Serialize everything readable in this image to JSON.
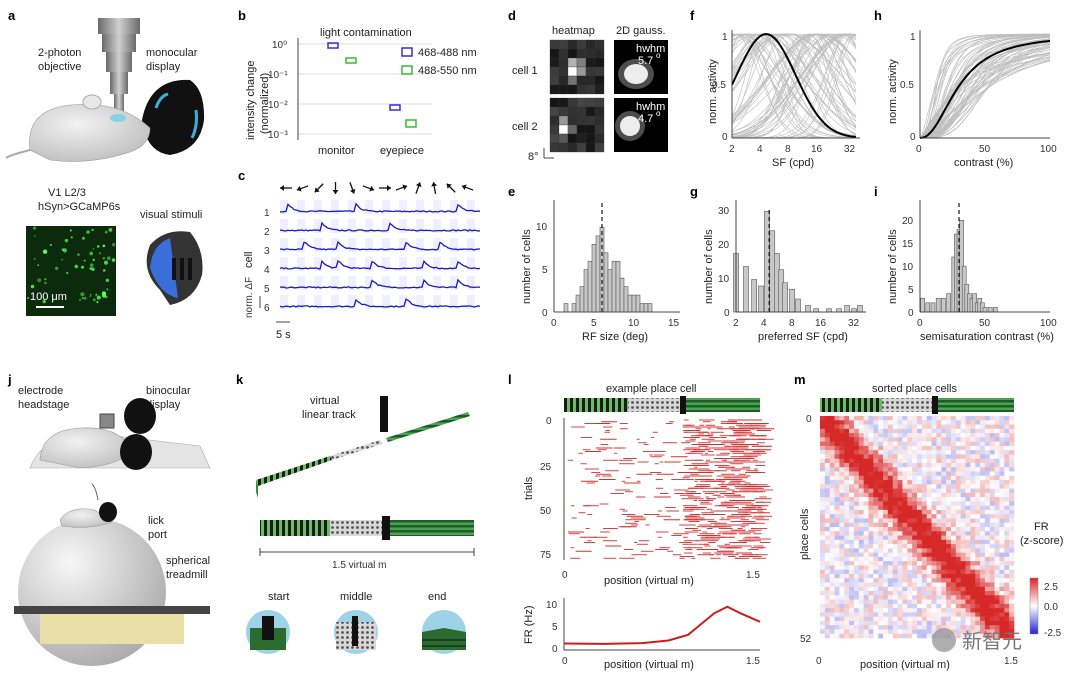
{
  "panels": {
    "a": {
      "label": "a",
      "objective": [
        "2-photon",
        "objective"
      ],
      "display": [
        "monocular",
        "display"
      ],
      "region": [
        "V1 L2/3",
        "hSyn>GCaMP6s"
      ],
      "scalebar": "100 μm",
      "stimuli": "visual stimuli"
    },
    "b": {
      "label": "b",
      "title": "light contamination",
      "ylabel": [
        "intensity change",
        "(normalized)"
      ],
      "yticks": [
        "10⁰",
        "10⁻¹",
        "10⁻²",
        "10⁻³"
      ],
      "xticks": [
        "monitor",
        "eyepiece"
      ],
      "legend": [
        {
          "name": "468-488 nm",
          "color": "#3030d0"
        },
        {
          "name": "488-550 nm",
          "color": "#30c030"
        }
      ]
    },
    "c": {
      "label": "c",
      "cells": [
        "1",
        "2",
        "3",
        "4",
        "5",
        "6"
      ],
      "ylabel": "cell",
      "scale_y": "norm. ΔF",
      "scale_x": "5 s"
    },
    "d": {
      "label": "d",
      "heatmap": "heatmap",
      "gauss": "2D gauss.",
      "cells": [
        "cell 1",
        "cell 2"
      ],
      "hwhm": "hwhm",
      "vals": [
        "5.7",
        "4.7"
      ],
      "deg": "o",
      "scale": "8°"
    },
    "e": {
      "label": "e",
      "xlabel": "RF size (deg)",
      "ylabel": "number of cells",
      "xticks": [
        "0",
        "5",
        "10",
        "15"
      ],
      "yticks": [
        "0",
        "5",
        "10"
      ]
    },
    "f": {
      "label": "f",
      "xlabel": "SF (cpd)",
      "ylabel": "norm. activity",
      "xticks": [
        "2",
        "4",
        "8",
        "16",
        "32"
      ],
      "yticks": [
        "0",
        "0.5",
        "1"
      ]
    },
    "g": {
      "label": "g",
      "xlabel": "preferred SF (cpd)",
      "ylabel": "number of cells",
      "xticks": [
        "2",
        "4",
        "8",
        "16",
        "32"
      ],
      "yticks": [
        "0",
        "10",
        "20",
        "30"
      ]
    },
    "h": {
      "label": "h",
      "xlabel": "contrast (%)",
      "ylabel": "norm. activity",
      "xticks": [
        "0",
        "50",
        "100"
      ],
      "yticks": [
        "0",
        "0.5",
        "1"
      ]
    },
    "i": {
      "label": "i",
      "xlabel": "semisaturation contrast (%)",
      "ylabel": "number of cells",
      "xticks": [
        "0",
        "50",
        "100"
      ],
      "yticks": [
        "0",
        "5",
        "10",
        "15",
        "20"
      ]
    },
    "j": {
      "label": "j",
      "headstage": [
        "electrode",
        "headstage"
      ],
      "display": [
        "binocular",
        "display"
      ],
      "lick": [
        "lick",
        "port"
      ],
      "treadmill": [
        "spherical",
        "treadmill"
      ]
    },
    "k": {
      "label": "k",
      "title": [
        "virtual",
        "linear track"
      ],
      "length": "1.5 virtual m",
      "views": [
        "start",
        "middle",
        "end"
      ]
    },
    "l": {
      "label": "l",
      "title": "example place cell",
      "ylabel": "trials",
      "xlabel": "position (virtual m)",
      "yticks": [
        "0",
        "25",
        "50",
        "75"
      ],
      "xticks": [
        "0",
        "1.5"
      ],
      "fr_label": "FR (Hz)",
      "fr_yticks": [
        "0",
        "5",
        "10"
      ],
      "fr_xticks": [
        "0",
        "1.5"
      ]
    },
    "m": {
      "label": "m",
      "title": "sorted place cells",
      "ylabel": "place cells",
      "xlabel": "position (virtual m)",
      "yticks": [
        "0",
        "52"
      ],
      "xticks": [
        "0",
        "1.5"
      ],
      "cbar_title": [
        "FR",
        "(z-score)"
      ],
      "cbar_ticks": [
        "2.5",
        "0.0",
        "-2.5"
      ]
    }
  },
  "watermark": "新智元",
  "chart_data": [
    {
      "type": "bar",
      "id": "e",
      "x": [
        1.5,
        2.5,
        3,
        3.5,
        4,
        4.5,
        5,
        5.5,
        6,
        6.5,
        7,
        7.5,
        8,
        8.5,
        9,
        9.5,
        10,
        10.5,
        11,
        11.5,
        12
      ],
      "values": [
        1,
        1,
        2,
        3,
        5,
        6,
        8,
        9,
        10,
        7,
        5,
        6,
        6,
        4,
        3,
        2,
        2,
        2,
        1,
        1,
        1
      ],
      "xlim": [
        0,
        15
      ],
      "ylim": [
        0,
        13
      ],
      "median": 6
    },
    {
      "type": "bar",
      "id": "g",
      "x": [
        2,
        2.5,
        3,
        3.5,
        4,
        4.5,
        5,
        5.5,
        6,
        7,
        8,
        10,
        12,
        16,
        20,
        24,
        28,
        32
      ],
      "values": [
        18,
        14,
        10,
        8,
        31,
        25,
        18,
        13,
        9,
        7,
        4,
        2,
        1,
        1,
        1,
        2,
        1,
        2
      ],
      "ylim": [
        0,
        32
      ],
      "median": 4.2
    },
    {
      "type": "bar",
      "id": "i",
      "x": [
        2,
        6,
        10,
        14,
        18,
        22,
        26,
        28,
        30,
        32,
        34,
        36,
        38,
        40,
        42,
        44,
        46,
        48,
        50,
        54,
        58,
        62
      ],
      "values": [
        3,
        2,
        2,
        3,
        3,
        4,
        12,
        17,
        18,
        20,
        10,
        6,
        4,
        3,
        4,
        2,
        3,
        2,
        1,
        1,
        1,
        0
      ],
      "xlim": [
        0,
        100
      ],
      "ylim": [
        0,
        24
      ],
      "median": 30
    },
    {
      "type": "line",
      "id": "l_fr",
      "x": [
        0,
        0.3,
        0.6,
        0.8,
        0.95,
        1.05,
        1.15,
        1.25,
        1.35,
        1.5
      ],
      "values": [
        1.5,
        1.4,
        1.6,
        2.2,
        3.5,
        6,
        8.5,
        10,
        8.5,
        6.5
      ],
      "xlim": [
        0,
        1.5
      ],
      "ylim": [
        0,
        12
      ]
    },
    {
      "type": "scatter",
      "id": "b",
      "categories": [
        "monitor",
        "eyepiece"
      ],
      "series": [
        {
          "name": "468-488 nm",
          "values": [
            0.9,
            0.006
          ]
        },
        {
          "name": "488-550 nm",
          "values": [
            0.3,
            0.002
          ]
        }
      ]
    }
  ]
}
